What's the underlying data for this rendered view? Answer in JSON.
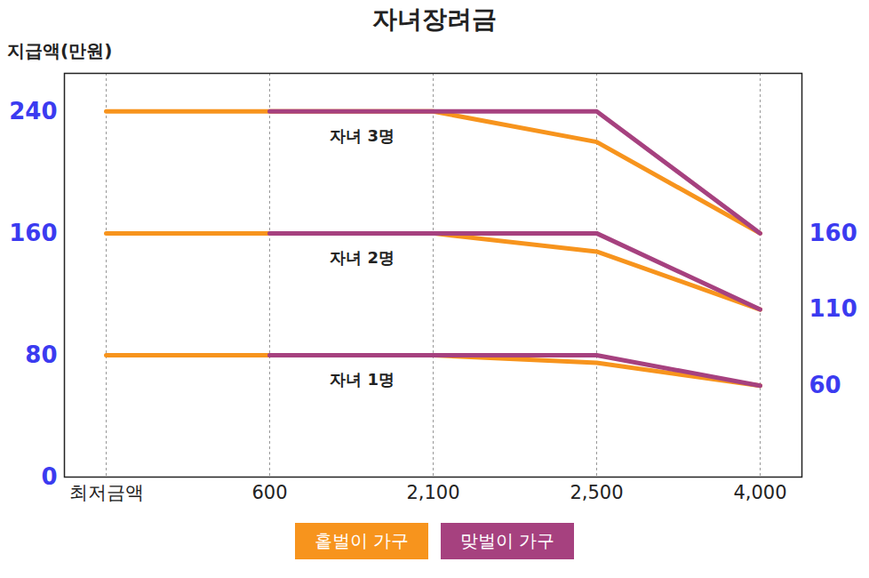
{
  "chart_data": {
    "type": "line",
    "title": "자녀장려금",
    "y_label": "지급액(만원)",
    "categories": [
      "최저금액",
      "600",
      "2,100",
      "2,500",
      "4,000"
    ],
    "ylim": [
      0,
      265
    ],
    "yticks": [
      0,
      80,
      160,
      240
    ],
    "y2lim": [
      0,
      265
    ],
    "y2ticks": [
      60,
      110,
      160
    ],
    "grid": true,
    "legend": "bottom",
    "series": [
      {
        "name": "홑벌이 가구",
        "label": "자녀 3명",
        "color": "#f7941d",
        "values": [
          240,
          240,
          240,
          220,
          160
        ]
      },
      {
        "name": "홑벌이 가구",
        "label": "자녀 2명",
        "color": "#f7941d",
        "values": [
          160,
          160,
          160,
          148,
          110
        ]
      },
      {
        "name": "홑벌이 가구",
        "label": "자녀 1명",
        "color": "#f7941d",
        "values": [
          80,
          80,
          80,
          75,
          60
        ]
      },
      {
        "name": "맞벌이 가구",
        "label": "자녀 3명",
        "color": "#a6417f",
        "values": [
          null,
          240,
          240,
          240,
          160
        ]
      },
      {
        "name": "맞벌이 가구",
        "label": "자녀 2명",
        "color": "#a6417f",
        "values": [
          null,
          160,
          160,
          160,
          110
        ]
      },
      {
        "name": "맞벌이 가구",
        "label": "자녀 1명",
        "color": "#a6417f",
        "values": [
          null,
          80,
          80,
          80,
          60
        ]
      }
    ]
  }
}
